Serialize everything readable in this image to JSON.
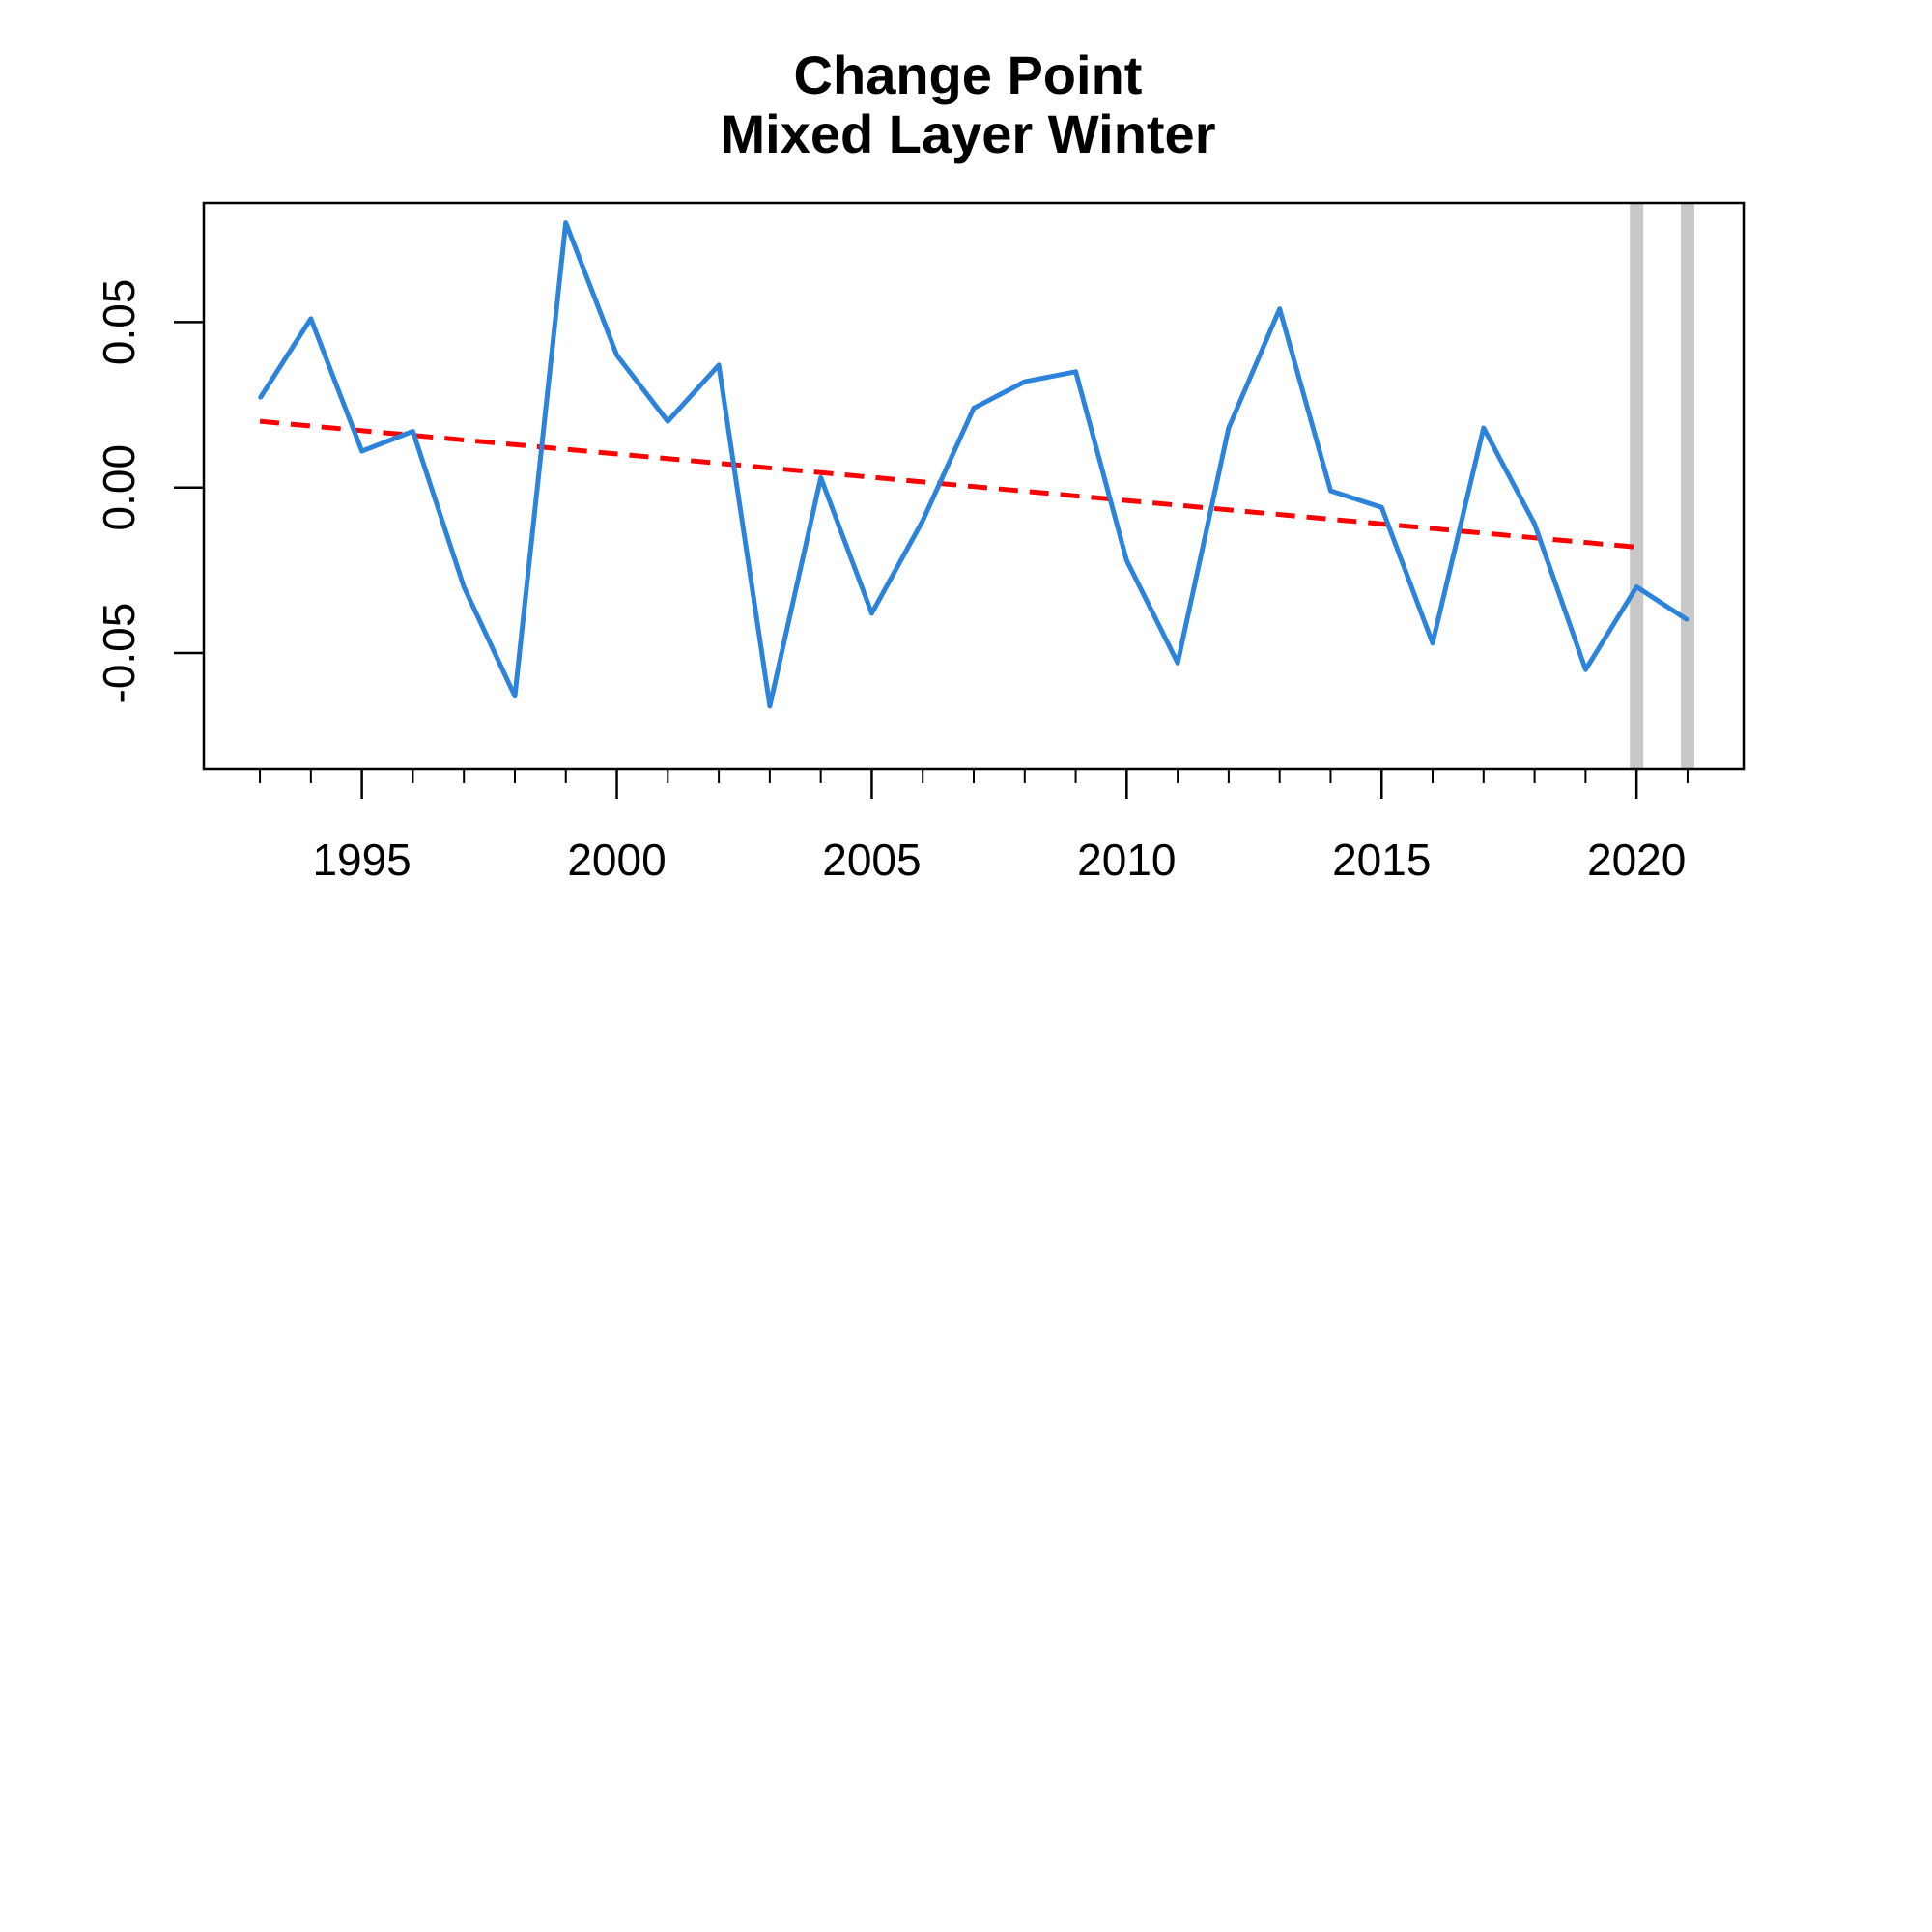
{
  "chart_data": {
    "type": "line",
    "title": "Change Point",
    "subtitle": "Mixed Layer Winter",
    "xlabel": "",
    "ylabel": "",
    "xlim": [
      1991.9,
      2022.1
    ],
    "ylim": [
      -0.085,
      0.086
    ],
    "x_ticks_major": [
      1995,
      2000,
      2005,
      2010,
      2015,
      2020
    ],
    "x_tick_labels": [
      "1995",
      "2000",
      "2005",
      "2010",
      "2015",
      "2020"
    ],
    "x_ticks_minor": [
      1993,
      1994,
      1995,
      1996,
      1997,
      1998,
      1999,
      2000,
      2001,
      2002,
      2003,
      2004,
      2005,
      2006,
      2007,
      2008,
      2009,
      2010,
      2011,
      2012,
      2013,
      2014,
      2015,
      2016,
      2017,
      2018,
      2019,
      2020,
      2021
    ],
    "y_ticks": [
      -0.05,
      0.0,
      0.05
    ],
    "y_tick_labels": [
      "-0.05",
      "0.00",
      "0.05"
    ],
    "grid": false,
    "series": [
      {
        "x": [
          1993,
          1994,
          1995,
          1996,
          1997,
          1998,
          1999,
          2000,
          2001,
          2002,
          2003,
          2004,
          2005,
          2006,
          2007,
          2008,
          2009,
          2010,
          2011,
          2012,
          2013,
          2014,
          2015,
          2016,
          2017,
          2018,
          2019,
          2020,
          2021
        ],
        "values": [
          0.027,
          0.051,
          0.011,
          0.017,
          -0.03,
          -0.063,
          0.08,
          0.04,
          0.02,
          0.037,
          -0.066,
          0.003,
          -0.038,
          -0.01,
          0.024,
          0.032,
          0.035,
          -0.022,
          -0.053,
          0.018,
          0.054,
          -0.001,
          -0.006,
          -0.047,
          0.018,
          -0.011,
          -0.055,
          -0.03,
          -0.04
        ],
        "color": "#2b83dc",
        "style": "solid"
      }
    ],
    "trend_line": {
      "x": [
        1993,
        2020
      ],
      "values": [
        0.02,
        -0.018
      ],
      "color": "#ff0000",
      "style": "dashed"
    },
    "change_points": {
      "x": [
        2020,
        2021
      ],
      "color": "#c8c8c8"
    }
  }
}
